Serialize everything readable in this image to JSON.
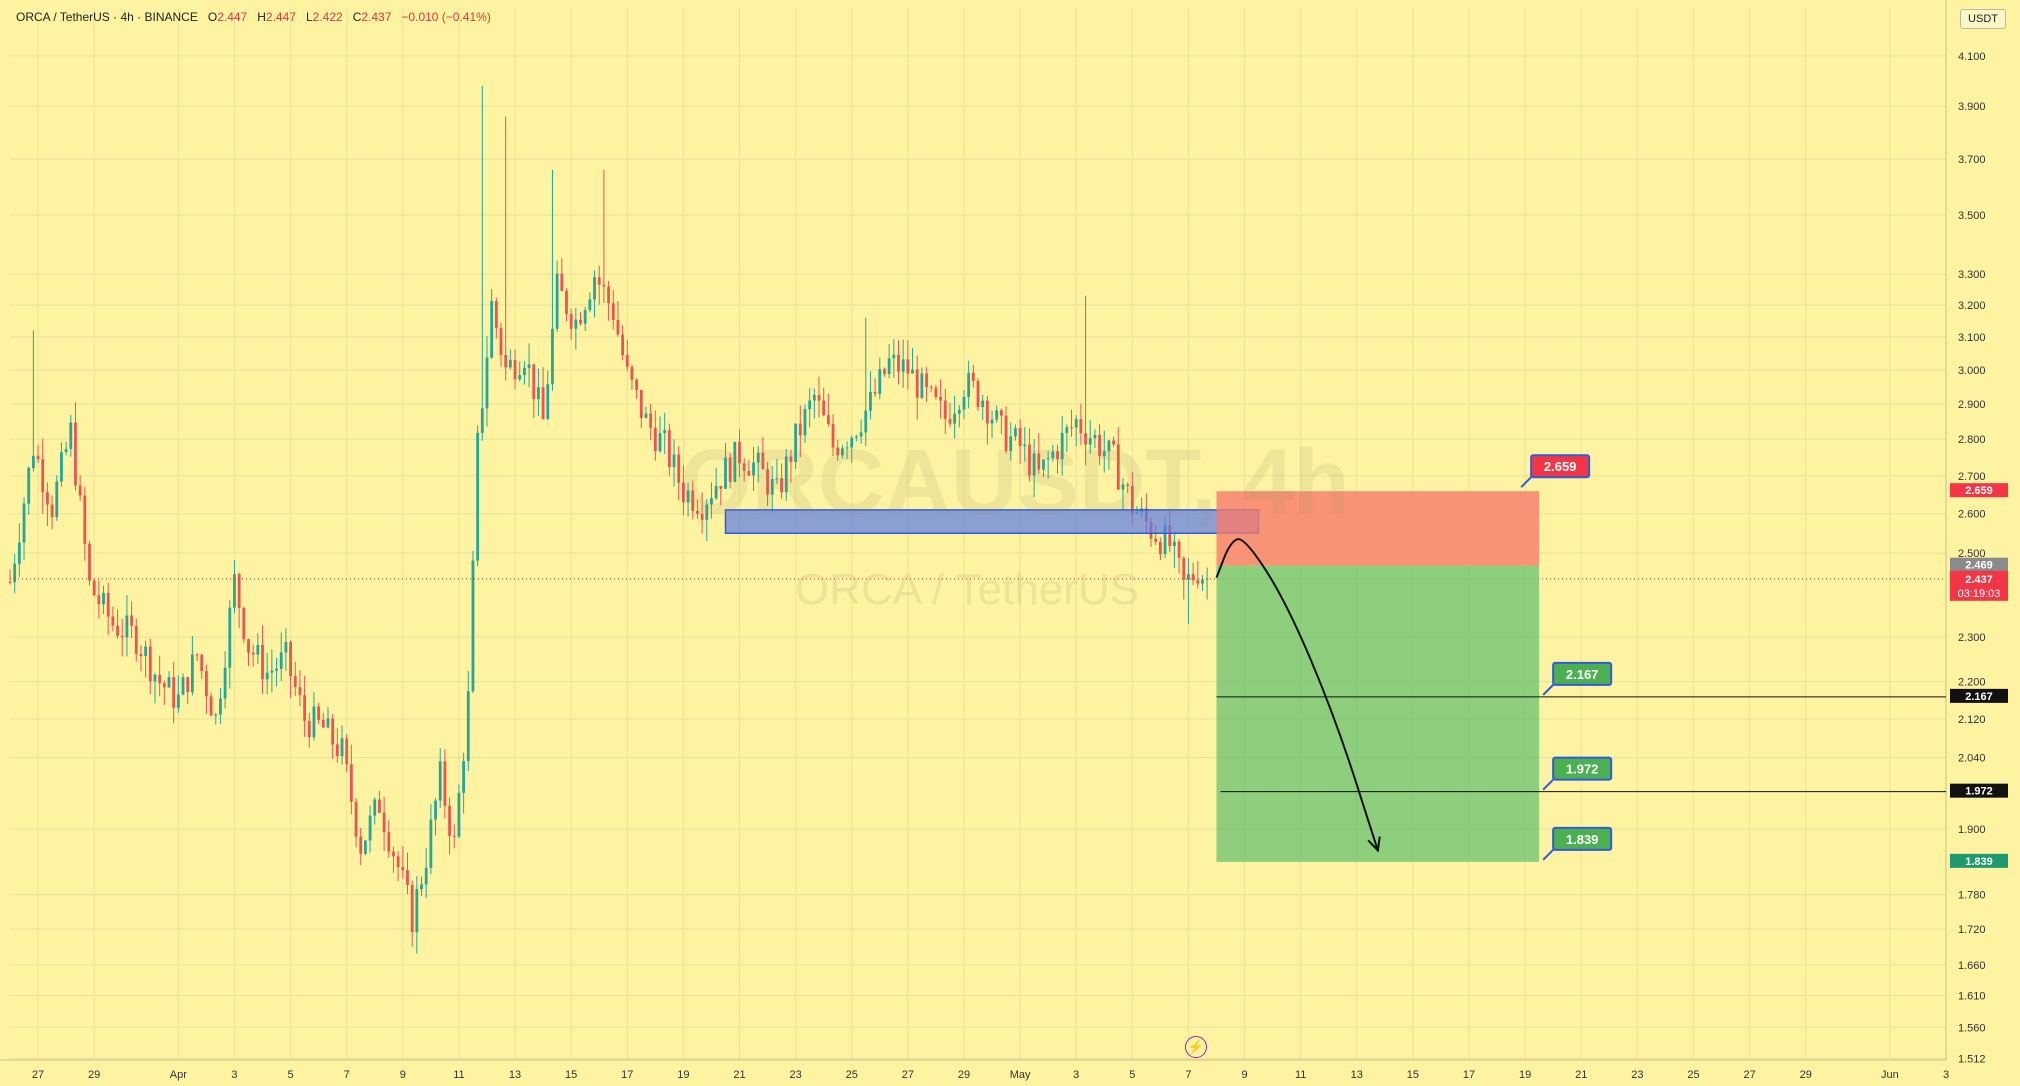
{
  "header": {
    "symbol": "ORCA / TetherUS · 4h · BINANCE",
    "o_label": "O",
    "o": "2.447",
    "h_label": "H",
    "h": "2.447",
    "l_label": "L",
    "l": "2.422",
    "c_label": "C",
    "c": "2.437",
    "change": "−0.010 (−0.41%)"
  },
  "currency_unit": "USDT",
  "watermark": {
    "line1": "ORCAUSDT, 4h",
    "line2": "ORCA / TetherUS"
  },
  "flash_icon": "lightning-icon",
  "colors": {
    "background": "#fdf3a1",
    "up": "#26a69a",
    "down": "#ef5350",
    "target": "#4caf50",
    "stop": "#f23645",
    "zone": "#5b7be6"
  },
  "chart_data": {
    "type": "candlestick",
    "y_scale": "log",
    "ylim": [
      1.51,
      4.3
    ],
    "y_ticks": [
      "4.100",
      "3.900",
      "3.700",
      "3.500",
      "3.300",
      "3.200",
      "3.100",
      "3.000",
      "2.900",
      "2.800",
      "2.700",
      "2.600",
      "2.500",
      "2.300",
      "2.200",
      "2.120",
      "2.040",
      "1.900",
      "1.780",
      "1.720",
      "1.660",
      "1.610",
      "1.560",
      "1.512"
    ],
    "x_range": [
      "2025-03-26",
      "2025-06-03"
    ],
    "x_ticks": [
      {
        "date": "2025-03-27",
        "label": "27"
      },
      {
        "date": "2025-03-29",
        "label": "29"
      },
      {
        "date": "2025-04-01",
        "label": "Apr"
      },
      {
        "date": "2025-04-03",
        "label": "3"
      },
      {
        "date": "2025-04-05",
        "label": "5"
      },
      {
        "date": "2025-04-07",
        "label": "7"
      },
      {
        "date": "2025-04-09",
        "label": "9"
      },
      {
        "date": "2025-04-11",
        "label": "11"
      },
      {
        "date": "2025-04-13",
        "label": "13"
      },
      {
        "date": "2025-04-15",
        "label": "15"
      },
      {
        "date": "2025-04-17",
        "label": "17"
      },
      {
        "date": "2025-04-19",
        "label": "19"
      },
      {
        "date": "2025-04-21",
        "label": "21"
      },
      {
        "date": "2025-04-23",
        "label": "23"
      },
      {
        "date": "2025-04-25",
        "label": "25"
      },
      {
        "date": "2025-04-27",
        "label": "27"
      },
      {
        "date": "2025-04-29",
        "label": "29"
      },
      {
        "date": "2025-05-01",
        "label": "May"
      },
      {
        "date": "2025-05-03",
        "label": "3"
      },
      {
        "date": "2025-05-05",
        "label": "5"
      },
      {
        "date": "2025-05-07",
        "label": "7"
      },
      {
        "date": "2025-05-09",
        "label": "9"
      },
      {
        "date": "2025-05-11",
        "label": "11"
      },
      {
        "date": "2025-05-13",
        "label": "13"
      },
      {
        "date": "2025-05-15",
        "label": "15"
      },
      {
        "date": "2025-05-17",
        "label": "17"
      },
      {
        "date": "2025-05-19",
        "label": "19"
      },
      {
        "date": "2025-05-21",
        "label": "21"
      },
      {
        "date": "2025-05-23",
        "label": "23"
      },
      {
        "date": "2025-05-25",
        "label": "25"
      },
      {
        "date": "2025-05-27",
        "label": "27"
      },
      {
        "date": "2025-05-29",
        "label": "29"
      },
      {
        "date": "2025-06-01",
        "label": "Jun"
      },
      {
        "date": "2025-06-03",
        "label": "3"
      }
    ],
    "interval_hours": 4,
    "price_path": [
      [
        "2025-03-26 00:00",
        2.43
      ],
      [
        "2025-03-26 20:00",
        2.78
      ],
      [
        "2025-03-27 12:00",
        2.62
      ],
      [
        "2025-03-28 04:00",
        2.82
      ],
      [
        "2025-03-28 20:00",
        2.42
      ],
      [
        "2025-03-29 16:00",
        2.33
      ],
      [
        "2025-03-30 12:00",
        2.3
      ],
      [
        "2025-03-31 08:00",
        2.2
      ],
      [
        "2025-04-01 00:00",
        2.16
      ],
      [
        "2025-04-01 16:00",
        2.26
      ],
      [
        "2025-04-02 08:00",
        2.12
      ],
      [
        "2025-04-03 00:00",
        2.43
      ],
      [
        "2025-04-03 12:00",
        2.28
      ],
      [
        "2025-04-04 04:00",
        2.22
      ],
      [
        "2025-04-04 20:00",
        2.25
      ],
      [
        "2025-04-05 12:00",
        2.12
      ],
      [
        "2025-04-06 04:00",
        2.1
      ],
      [
        "2025-04-06 20:00",
        2.05
      ],
      [
        "2025-04-07 12:00",
        1.87
      ],
      [
        "2025-04-08 04:00",
        1.95
      ],
      [
        "2025-04-08 20:00",
        1.83
      ],
      [
        "2025-04-09 08:00",
        1.74
      ],
      [
        "2025-04-09 20:00",
        1.85
      ],
      [
        "2025-04-10 08:00",
        2.0
      ],
      [
        "2025-04-10 20:00",
        1.87
      ],
      [
        "2025-04-11 08:00",
        2.16
      ],
      [
        "2025-04-11 16:00",
        2.78
      ],
      [
        "2025-04-12 04:00",
        3.2
      ],
      [
        "2025-04-12 16:00",
        3.0
      ],
      [
        "2025-04-13 08:00",
        3.05
      ],
      [
        "2025-04-14 00:00",
        2.85
      ],
      [
        "2025-04-14 12:00",
        3.25
      ],
      [
        "2025-04-15 04:00",
        3.15
      ],
      [
        "2025-04-15 20:00",
        3.3
      ],
      [
        "2025-04-16 12:00",
        3.18
      ],
      [
        "2025-04-17 00:00",
        2.98
      ],
      [
        "2025-04-17 16:00",
        2.85
      ],
      [
        "2025-04-18 08:00",
        2.78
      ],
      [
        "2025-04-19 00:00",
        2.66
      ],
      [
        "2025-04-19 16:00",
        2.63
      ],
      [
        "2025-04-20 08:00",
        2.7
      ],
      [
        "2025-04-21 00:00",
        2.76
      ],
      [
        "2025-04-21 16:00",
        2.72
      ],
      [
        "2025-04-22 08:00",
        2.65
      ],
      [
        "2025-04-23 00:00",
        2.8
      ],
      [
        "2025-04-23 16:00",
        2.92
      ],
      [
        "2025-04-24 08:00",
        2.78
      ],
      [
        "2025-04-25 00:00",
        2.82
      ],
      [
        "2025-04-25 16:00",
        2.9
      ],
      [
        "2025-04-26 08:00",
        3.02
      ],
      [
        "2025-04-27 00:00",
        3.0
      ],
      [
        "2025-04-27 16:00",
        2.92
      ],
      [
        "2025-04-28 08:00",
        2.86
      ],
      [
        "2025-04-29 00:00",
        2.96
      ],
      [
        "2025-04-29 16:00",
        2.92
      ],
      [
        "2025-04-30 08:00",
        2.82
      ],
      [
        "2025-05-01 00:00",
        2.78
      ],
      [
        "2025-05-01 16:00",
        2.7
      ],
      [
        "2025-05-02 08:00",
        2.78
      ],
      [
        "2025-05-03 00:00",
        2.85
      ],
      [
        "2025-05-03 16:00",
        2.8
      ],
      [
        "2025-05-04 08:00",
        2.74
      ],
      [
        "2025-05-05 00:00",
        2.62
      ],
      [
        "2025-05-05 16:00",
        2.56
      ],
      [
        "2025-05-06 08:00",
        2.52
      ],
      [
        "2025-05-06 20:00",
        2.42
      ],
      [
        "2025-05-07 08:00",
        2.46
      ],
      [
        "2025-05-07 16:00",
        2.437
      ]
    ],
    "price_extremes": [
      {
        "date": "2025-03-26 20:00",
        "value": 3.12,
        "kind": "high"
      },
      {
        "date": "2025-04-09 08:00",
        "value": 1.69,
        "kind": "low"
      },
      {
        "date": "2025-04-11 20:00",
        "value": 3.98,
        "kind": "high"
      },
      {
        "date": "2025-04-12 16:00",
        "value": 3.86,
        "kind": "high"
      },
      {
        "date": "2025-04-14 08:00",
        "value": 3.66,
        "kind": "high"
      },
      {
        "date": "2025-04-16 04:00",
        "value": 3.66,
        "kind": "high"
      },
      {
        "date": "2025-04-25 12:00",
        "value": 3.16,
        "kind": "high"
      },
      {
        "date": "2025-05-03 08:00",
        "value": 3.23,
        "kind": "high"
      },
      {
        "date": "2025-05-07 00:00",
        "value": 2.33,
        "kind": "low"
      }
    ],
    "current_price": {
      "value": 2.437,
      "label": "2.437",
      "countdown": "03:19:03"
    },
    "reference_price": {
      "value": 2.469,
      "label": "2.469"
    },
    "supply_zone": {
      "from": "2025-04-20 12:00",
      "to": "2025-05-09 12:00",
      "top": 2.61,
      "bottom": 2.55
    },
    "position": {
      "side": "short",
      "from": "2025-05-08 00:00",
      "to": "2025-05-19 12:00",
      "entry": 2.469,
      "stop": 2.659,
      "target": 1.839,
      "stop_label": "2.659",
      "target_label": "1.839"
    },
    "take_profit_levels": [
      {
        "value": 2.167,
        "label": "2.167"
      },
      {
        "value": 1.972,
        "label": "1.972"
      },
      {
        "value": 1.839,
        "label": "1.839"
      }
    ],
    "projection_arrow": [
      [
        "2025-05-08 00:00",
        2.44
      ],
      [
        "2025-05-08 12:00",
        2.53
      ],
      [
        "2025-05-09 00:00",
        2.54
      ],
      [
        "2025-05-10 12:00",
        2.38
      ],
      [
        "2025-05-12 06:00",
        2.12
      ],
      [
        "2025-05-13 18:00",
        1.86
      ]
    ]
  }
}
